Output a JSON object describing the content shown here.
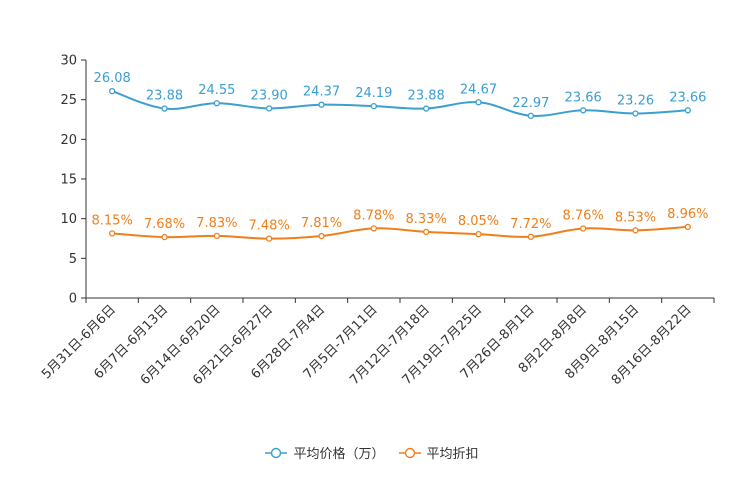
{
  "chart_data": {
    "type": "line",
    "title": "",
    "xlabel": "",
    "ylabel": "",
    "ylim": [
      0,
      30
    ],
    "yticks": [
      0,
      5,
      10,
      15,
      20,
      25,
      30
    ],
    "y_tick_labels": [
      "0",
      "5",
      "10",
      "15",
      "20",
      "25",
      "30"
    ],
    "legend_position": "bottom-center",
    "grid": false,
    "categories": [
      "5月31日-6月6日",
      "6月7日-6月13日",
      "6月14日-6月20日",
      "6月21日-6月27日",
      "6月28日-7月4日",
      "7月5日-7月11日",
      "7月12日-7月18日",
      "7月19日-7月25日",
      "7月26日-8月1日",
      "8月2日-8月8日",
      "8月9日-8月15日",
      "8月16日-8月22日"
    ],
    "series": [
      {
        "name": "平均价格（万）",
        "color": "#3a9fd1",
        "values": [
          26.08,
          23.88,
          24.55,
          23.9,
          24.37,
          24.19,
          23.88,
          24.67,
          22.97,
          23.66,
          23.26,
          23.66
        ],
        "labels": [
          "26.08",
          "23.88",
          "24.55",
          "23.90",
          "24.37",
          "24.19",
          "23.88",
          "24.67",
          "22.97",
          "23.66",
          "23.26",
          "23.66"
        ]
      },
      {
        "name": "平均折扣",
        "color": "#f07f1b",
        "values": [
          8.15,
          7.68,
          7.83,
          7.48,
          7.81,
          8.78,
          8.33,
          8.05,
          7.72,
          8.76,
          8.53,
          8.96
        ],
        "labels": [
          "8.15%",
          "7.68%",
          "7.83%",
          "7.48%",
          "7.81%",
          "8.78%",
          "8.33%",
          "8.05%",
          "7.72%",
          "8.76%",
          "8.53%",
          "8.96%"
        ]
      }
    ]
  }
}
